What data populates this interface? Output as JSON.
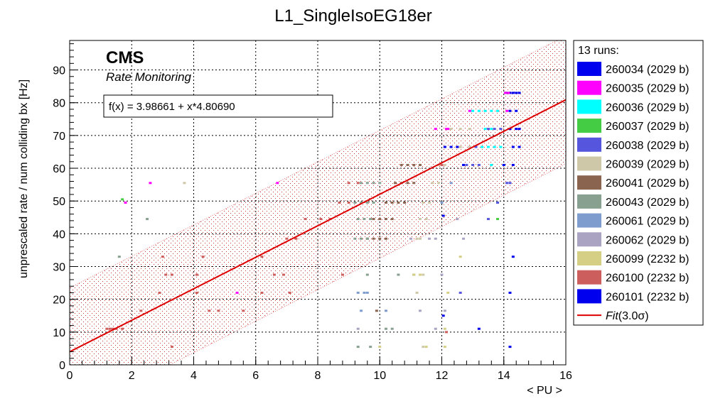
{
  "chart_data": {
    "type": "scatter",
    "title": "L1_SingleIsoEG18er",
    "xlabel": "< PU >",
    "ylabel": "unprescaled rate / num colliding bx [Hz]",
    "xlim": [
      0,
      16
    ],
    "ylim": [
      0,
      99
    ],
    "x_ticks": [
      0,
      2,
      4,
      6,
      8,
      10,
      12,
      14,
      16
    ],
    "x_tick_labels": [
      "0",
      "2",
      "4",
      "6",
      "8",
      "10",
      "12",
      "14",
      "16"
    ],
    "y_ticks": [
      0,
      10,
      20,
      30,
      40,
      50,
      60,
      70,
      80,
      90
    ],
    "y_tick_labels": [
      "0",
      "10",
      "20",
      "30",
      "40",
      "50",
      "60",
      "70",
      "80",
      "90"
    ],
    "grid": true,
    "legend_position": "right",
    "cms_label": "CMS",
    "cms_sublabel": "Rate Monitoring",
    "fit_formula": "f(x) = 3.98661 + x*4.80690",
    "fit": {
      "intercept": 3.98661,
      "slope": 4.8069,
      "band_halfwidth": 19.5,
      "color": "#dd0000"
    },
    "legend_header": "13 runs:",
    "legend_fit_label": "Fit",
    "legend_fit_suffix": "(3.0σ)",
    "series": [
      {
        "name": "260034 (2029 b)",
        "color": "#0000ee",
        "points": [
          [
            14.1,
            83
          ],
          [
            14.2,
            83
          ],
          [
            14.3,
            83
          ],
          [
            14.4,
            83
          ],
          [
            14.5,
            83
          ],
          [
            14.2,
            77.5
          ],
          [
            14.4,
            77.5
          ],
          [
            14.2,
            72
          ],
          [
            14.4,
            72
          ],
          [
            14.5,
            72
          ],
          [
            14.3,
            66.5
          ],
          [
            14.5,
            66.5
          ],
          [
            14.2,
            22
          ],
          [
            14.3,
            33
          ],
          [
            14.2,
            5.5
          ],
          [
            12.05,
            15
          ],
          [
            12.05,
            45.5
          ]
        ]
      },
      {
        "name": "260035 (2029 b)",
        "color": "#ff00ff",
        "points": [
          [
            14.05,
            83
          ],
          [
            14.15,
            83
          ],
          [
            14.1,
            77.5
          ],
          [
            12.9,
            77.5
          ],
          [
            12.2,
            72
          ],
          [
            12.15,
            72
          ],
          [
            11.8,
            72
          ],
          [
            2.6,
            55.5
          ],
          [
            6.7,
            55.5
          ],
          [
            1.8,
            49.5
          ],
          [
            5.4,
            22
          ]
        ]
      },
      {
        "name": "260036 (2029 b)",
        "color": "#00ffff",
        "points": [
          [
            13.0,
            77.5
          ],
          [
            13.2,
            77.5
          ],
          [
            13.4,
            77.5
          ],
          [
            13.6,
            77.5
          ],
          [
            13.8,
            77.5
          ],
          [
            13.4,
            72
          ],
          [
            13.6,
            72
          ],
          [
            13.3,
            66.5
          ],
          [
            13.5,
            66.5
          ],
          [
            13.7,
            66.5
          ],
          [
            13.9,
            66.5
          ],
          [
            13.6,
            61
          ],
          [
            14.0,
            61
          ]
        ]
      },
      {
        "name": "260037 (2029 b)",
        "color": "#44cc44",
        "points": [
          [
            13.8,
            44.5
          ],
          [
            1.7,
            50.5
          ]
        ]
      },
      {
        "name": "260038 (2029 b)",
        "color": "#5555dd",
        "points": [
          [
            13.5,
            72
          ],
          [
            13.7,
            72
          ],
          [
            13.9,
            72
          ],
          [
            12.9,
            66.5
          ],
          [
            13.1,
            66.5
          ],
          [
            12.8,
            61
          ],
          [
            13.0,
            61
          ],
          [
            13.2,
            61
          ],
          [
            14.1,
            55.5
          ],
          [
            13.8,
            49.5
          ],
          [
            14.2,
            55.5
          ],
          [
            13.5,
            44.5
          ],
          [
            12.6,
            22
          ]
        ]
      },
      {
        "name": "260039 (2029 b)",
        "color": "#cfc8a8",
        "points": [
          [
            12.3,
            72
          ],
          [
            12.6,
            72
          ],
          [
            12.9,
            72
          ],
          [
            12.6,
            66.5
          ],
          [
            12.9,
            66.5
          ],
          [
            11.9,
            61
          ],
          [
            12.1,
            61
          ],
          [
            11.7,
            55.5
          ],
          [
            11.9,
            55.5
          ],
          [
            11.4,
            49.5
          ],
          [
            11.6,
            49.5
          ],
          [
            11.3,
            44.5
          ],
          [
            11.5,
            44.5
          ],
          [
            11.2,
            38.5
          ],
          [
            11.3,
            38.5
          ],
          [
            11.2,
            22
          ],
          [
            11.4,
            27.5
          ],
          [
            11.4,
            5.5
          ],
          [
            3.7,
            55.5
          ]
        ]
      },
      {
        "name": "260041 (2029 b)",
        "color": "#8b6450",
        "points": [
          [
            10.7,
            61
          ],
          [
            10.9,
            61
          ],
          [
            11.1,
            61
          ],
          [
            11.3,
            61
          ],
          [
            10.5,
            55.5
          ],
          [
            10.7,
            55.5
          ],
          [
            10.9,
            55.5
          ],
          [
            11.1,
            55.5
          ],
          [
            10.2,
            49.5
          ],
          [
            10.4,
            49.5
          ],
          [
            10.6,
            49.5
          ],
          [
            10.8,
            49.5
          ],
          [
            9.8,
            44.5
          ],
          [
            10.0,
            44.5
          ],
          [
            10.2,
            44.5
          ],
          [
            10.4,
            44.5
          ],
          [
            9.6,
            38.5
          ],
          [
            9.8,
            38.5
          ],
          [
            10.0,
            38.5
          ],
          [
            10.2,
            38.5
          ],
          [
            9.9,
            16.5
          ]
        ]
      },
      {
        "name": "260043 (2029 b)",
        "color": "#88a090",
        "points": [
          [
            9.4,
            55.5
          ],
          [
            9.6,
            55.5
          ],
          [
            9.8,
            55.5
          ],
          [
            10.0,
            55.5
          ],
          [
            9.2,
            49.5
          ],
          [
            9.4,
            49.5
          ],
          [
            9.6,
            49.5
          ],
          [
            9.8,
            49.5
          ],
          [
            9.3,
            44.5
          ],
          [
            9.5,
            44.5
          ],
          [
            9.7,
            44.5
          ],
          [
            9.2,
            38.5
          ],
          [
            9.4,
            38.5
          ],
          [
            9.6,
            38.5
          ],
          [
            9.6,
            27.5
          ],
          [
            10.6,
            27.5
          ],
          [
            11.1,
            27.5
          ],
          [
            10.2,
            11
          ],
          [
            10.4,
            11
          ],
          [
            9.3,
            5.5
          ],
          [
            9.7,
            5.5
          ],
          [
            2.5,
            44.5
          ],
          [
            1.6,
            33
          ]
        ]
      },
      {
        "name": "260061 (2029 b)",
        "color": "#7f9ccf",
        "points": [
          [
            12.0,
            49.5
          ],
          [
            12.3,
            55.5
          ],
          [
            9.3,
            22
          ],
          [
            9.5,
            22
          ],
          [
            9.6,
            22
          ],
          [
            9.4,
            16.5
          ],
          [
            10.2,
            16.5
          ]
        ]
      },
      {
        "name": "260062 (2029 b)",
        "color": "#aaa3c2",
        "points": [
          [
            12.7,
            38.5
          ],
          [
            11.8,
            38.5
          ],
          [
            11.6,
            38.5
          ],
          [
            11.0,
            38.5
          ],
          [
            12.5,
            44.5
          ],
          [
            12.1,
            16.5
          ],
          [
            11.3,
            16.5
          ],
          [
            9.3,
            11
          ],
          [
            11.8,
            11
          ],
          [
            12.0,
            27.5
          ]
        ]
      },
      {
        "name": "260099 (2232 b)",
        "color": "#d4cf85",
        "points": [
          [
            12.6,
            33
          ],
          [
            11.1,
            27.5
          ],
          [
            11.3,
            27.5
          ],
          [
            11.5,
            5.5
          ],
          [
            12.1,
            5.5
          ],
          [
            12.2,
            22
          ],
          [
            10.0,
            5.5
          ],
          [
            12.1,
            11
          ]
        ]
      },
      {
        "name": "260100 (2232 b)",
        "color": "#cc5e5e",
        "points": [
          [
            1.2,
            11
          ],
          [
            1.3,
            11
          ],
          [
            1.4,
            11
          ],
          [
            1.5,
            11
          ],
          [
            1.7,
            11
          ],
          [
            3.3,
            5.5
          ],
          [
            2.3,
            16.5
          ],
          [
            2.9,
            22
          ],
          [
            3.1,
            27.5
          ],
          [
            3.3,
            27.5
          ],
          [
            3.0,
            33
          ],
          [
            4.1,
            27.5
          ],
          [
            4.3,
            33
          ],
          [
            4.1,
            22
          ],
          [
            4.5,
            16.5
          ],
          [
            4.8,
            16.5
          ],
          [
            5.6,
            16.5
          ],
          [
            6.2,
            22
          ],
          [
            6.6,
            27.5
          ],
          [
            6.9,
            27.5
          ],
          [
            7.1,
            22
          ],
          [
            6.2,
            33
          ],
          [
            7.0,
            38.5
          ],
          [
            7.3,
            38.5
          ],
          [
            7.6,
            44.5
          ],
          [
            8.1,
            44.5
          ],
          [
            8.4,
            44.5
          ],
          [
            8.7,
            49.5
          ],
          [
            9.0,
            49.5
          ],
          [
            9.0,
            55.5
          ],
          [
            9.3,
            55.5
          ],
          [
            12.15,
            10
          ],
          [
            12.0,
            61
          ],
          [
            8.8,
            27.5
          ]
        ]
      },
      {
        "name": "260101 (2232 b)",
        "color": "#0000ee",
        "points": [
          [
            12.1,
            66.5
          ],
          [
            12.3,
            66.5
          ],
          [
            12.5,
            66.5
          ],
          [
            12.7,
            61
          ],
          [
            13.2,
            11
          ],
          [
            14.0,
            61
          ],
          [
            14.3,
            61
          ]
        ]
      }
    ]
  }
}
